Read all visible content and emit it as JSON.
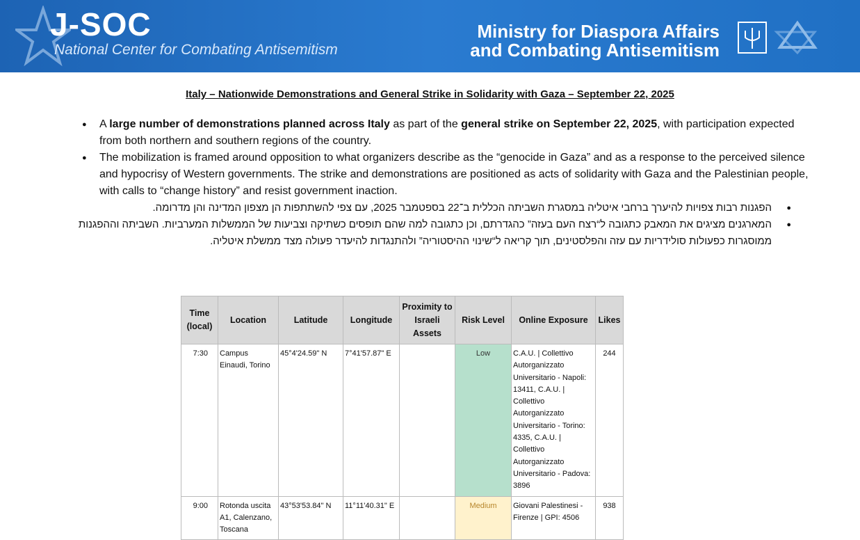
{
  "header": {
    "logo_title": "J-SOC",
    "logo_subtitle": "National Center for Combating Antisemitism",
    "ministry_line1": "Ministry for Diaspora Affairs",
    "ministry_line2": "and Combating Antisemitism"
  },
  "title": "Italy – Nationwide Demonstrations and General Strike in Solidarity with Gaza – September 22, 2025",
  "bullets_en": [
    {
      "segments": [
        {
          "text": "A ",
          "bold": false
        },
        {
          "text": "large number of demonstrations planned across Italy",
          "bold": true
        },
        {
          "text": " as part of the ",
          "bold": false
        },
        {
          "text": "general strike on September 22, 2025",
          "bold": true
        },
        {
          "text": ", with participation expected from both northern and southern regions of the country.",
          "bold": false
        }
      ]
    },
    {
      "segments": [
        {
          "text": "The mobilization is framed around opposition to what organizers describe as the “genocide in Gaza” and as a response to the perceived silence and hypocrisy of Western governments. The strike and demonstrations are positioned as acts of solidarity with Gaza and the Palestinian people, with calls to “change history” and resist government inaction.",
          "bold": false
        }
      ]
    }
  ],
  "bullets_he": [
    "הפגנות רבות צפויות להיערך ברחבי איטליה במסגרת השביתה הכללית ב־22 בספטמבר 2025, עם צפי להשתתפות הן מצפון המדינה והן מדרומה.",
    "המארגנים מציגים את המאבק כתגובה ל“רצח העם בעזה” כהגדרתם, וכן כתגובה למה שהם תופסים כשתיקה וצביעות של הממשלות המערביות. השביתה וההפגנות ממוסגרות כפעולות סולידריות עם עזה והפלסטינים, תוך קריאה ל“שינוי ההיסטוריה” ולהתנגדות להיעדר פעולה מצד ממשלת איטליה."
  ],
  "table": {
    "headers": [
      "Time (local)",
      "Location",
      "Latitude",
      "Longitude",
      "Proximity to Israeli Assets",
      "Risk Level",
      "Online Exposure",
      "Likes"
    ],
    "rows": [
      [
        "7:30",
        "Campus Einaudi, Torino",
        "45°4'24.59\" N",
        "7°41'57.87\" E",
        null,
        "Low",
        "C.A.U. | Collettivo Autorganizzato Universitario - Napoli: 13411, C.A.U. | Collettivo Autorganizzato Universitario - Torino: 4335, C.A.U. | Collettivo Autorganizzato Universitario - Padova: 3896",
        244
      ],
      [
        "9:00",
        "Rotonda uscita A1, Calenzano, Toscana",
        "43°53'53.84\" N",
        "11°11'40.31\" E",
        null,
        "Medium",
        "Giovani Palestinesi - Firenze | GPI: 4506",
        938
      ]
    ]
  }
}
